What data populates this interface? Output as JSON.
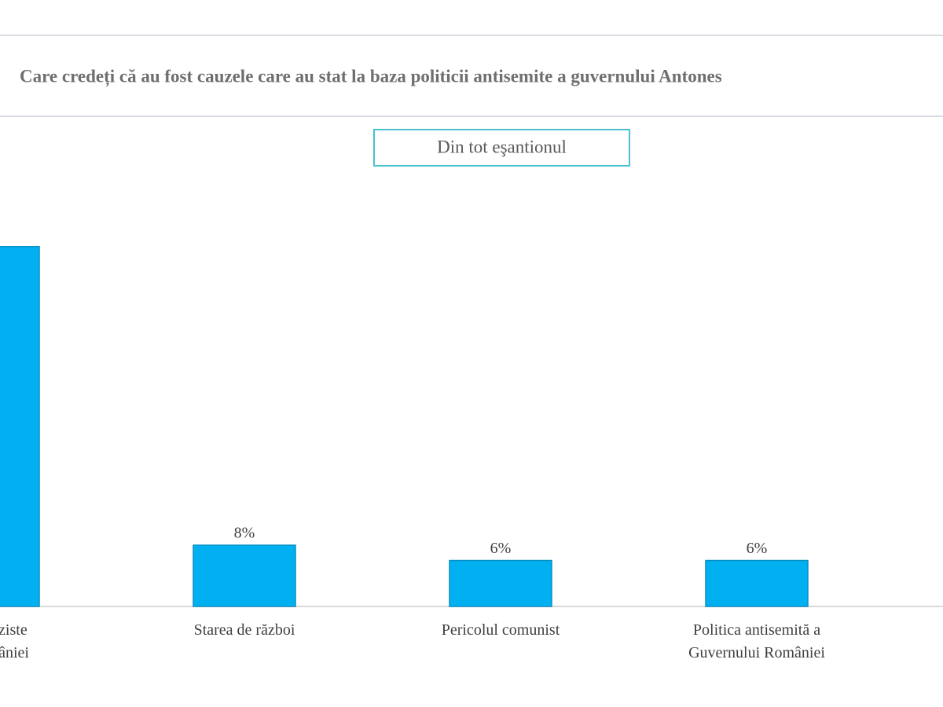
{
  "chart_data": {
    "type": "bar",
    "title": "Care credeți că au fost cauzele care au stat la baza politicii antisemite a guvernului Antones",
    "subtitle": "Din tot eşantionul",
    "categories": [
      "aniei naziste\nlui României",
      "Starea de război",
      "Pericolul comunist",
      "Politica antisemită a\nGuvernului României"
    ],
    "values": [
      47,
      8,
      6,
      6
    ],
    "value_labels": [
      "%",
      "8%",
      "6%",
      "6%"
    ],
    "color": "#00b0f0",
    "ylim": [
      0,
      50
    ]
  }
}
